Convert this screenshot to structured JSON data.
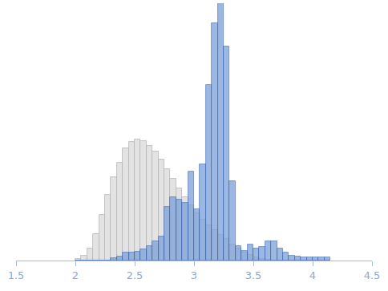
{
  "chart_data": {
    "type": "histogram",
    "bins": [
      2.0,
      2.05,
      2.1,
      2.15,
      2.2,
      2.25,
      2.3,
      2.35,
      2.4,
      2.45,
      2.5,
      2.55,
      2.6,
      2.65,
      2.7,
      2.75,
      2.8,
      2.85,
      2.9,
      2.95,
      3.0,
      3.05,
      3.1,
      3.15,
      3.2,
      3.25,
      3.3,
      3.35,
      3.4,
      3.45,
      3.5,
      3.55,
      3.6,
      3.65,
      3.7,
      3.75,
      3.8,
      3.85,
      3.9,
      3.95,
      4.0,
      4.05,
      4.1,
      4.15
    ],
    "series": [
      {
        "color": "#e3e3e3",
        "values": [
          2,
          6,
          15,
          33,
          58,
          83,
          105,
          124,
          142,
          150,
          153,
          151,
          145,
          138,
          128,
          115,
          103,
          91,
          80,
          70,
          60,
          52,
          45,
          38,
          32,
          27,
          20,
          15,
          10,
          7,
          4,
          2,
          1,
          0,
          0,
          0,
          0,
          0,
          0,
          0,
          0,
          0,
          0
        ]
      },
      {
        "color": "#7b9fd8",
        "values": [
          0,
          0,
          0,
          0,
          0,
          0,
          3,
          5,
          10,
          10,
          11,
          14,
          18,
          24,
          30,
          68,
          80,
          77,
          73,
          112,
          65,
          122,
          222,
          300,
          325,
          270,
          100,
          18,
          12,
          20,
          15,
          17,
          24,
          24,
          15,
          10,
          6,
          5,
          4,
          4,
          4,
          4,
          4
        ]
      }
    ],
    "xlim": [
      1.5,
      4.5
    ],
    "xticks": [
      1.5,
      2,
      2.5,
      3,
      3.5,
      4,
      4.5
    ],
    "ylim": [
      0,
      325
    ],
    "tick_labels": "x",
    "grid": false
  }
}
